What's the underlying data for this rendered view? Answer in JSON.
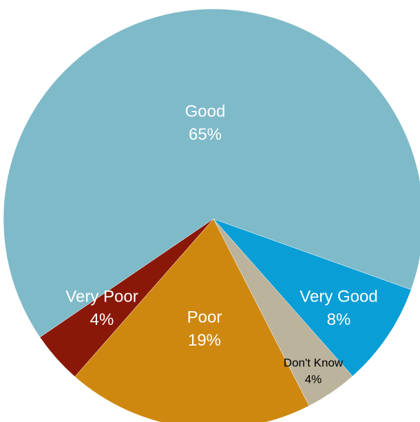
{
  "chart_data": {
    "type": "pie",
    "categories": [
      "Good",
      "Very Good",
      "Don't Know",
      "Poor",
      "Very Poor"
    ],
    "values": [
      65,
      8,
      4,
      19,
      4
    ],
    "value_labels": [
      "65%",
      "8%",
      "4%",
      "19%",
      "4%"
    ],
    "colors": [
      "#7fbac9",
      "#099ed6",
      "#bbb39b",
      "#cf880f",
      "#8a1808"
    ]
  }
}
